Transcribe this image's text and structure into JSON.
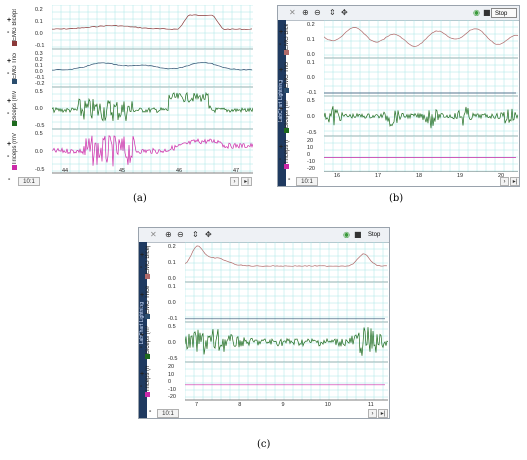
{
  "figure_labels": {
    "a": "(a)",
    "b": "(b)",
    "c": "(c)"
  },
  "panel_a": {
    "channels": [
      {
        "name": "EMG Biceps (mV)",
        "color": "#8b3a3a",
        "yticks": [
          "0.2",
          "0.1",
          "0.0",
          "-0.1"
        ]
      },
      {
        "name": "EMG Triceps (mV)",
        "color": "#2a4d6e",
        "yticks": [
          "0.3",
          "0.2",
          "0.1",
          "0.0",
          "-0.1",
          "-0.2"
        ]
      },
      {
        "name": "Biceps (mV)",
        "color": "#1e6b1e",
        "yticks": [
          "0.5",
          "0.0",
          "-0.5"
        ]
      },
      {
        "name": "Triceps (mV)",
        "color": "#cc2aa8",
        "yticks": [
          "0.5",
          "0.0",
          "-0.5"
        ]
      }
    ],
    "xticks": [
      "44",
      "45",
      "46",
      "47"
    ],
    "zoom": "10:1",
    "plus": "+",
    "minus": "-"
  },
  "panel_b": {
    "toolbar": {
      "close": "✕",
      "stop": "Stop"
    },
    "side_label": "LabChart Lightning",
    "channels": [
      {
        "name": "EMG Biceps (mV)",
        "color": "#b06a6a",
        "yticks": [
          "0.2",
          "0.1",
          "0.0"
        ]
      },
      {
        "name": "EMG Triceps (mV)",
        "color": "#2a4d6e",
        "yticks": [
          "0.1",
          "0.0",
          "-0.1"
        ]
      },
      {
        "name": "Biceps (mV)",
        "color": "#1e6b1e",
        "yticks": [
          "0.5",
          "0.0",
          "-0.5"
        ]
      },
      {
        "name": "Triceps (mV)",
        "color": "#cc2aa8",
        "yticks": [
          "20",
          "10",
          "0",
          "-10",
          "-20"
        ]
      }
    ],
    "xticks": [
      "16",
      "17",
      "18",
      "19",
      "20"
    ],
    "zoom": "10:1"
  },
  "panel_c": {
    "toolbar": {
      "close": "✕",
      "stop": "Stop"
    },
    "side_label": "LabChart Lightning",
    "channels": [
      {
        "name": "EMG Biceps (mV)",
        "color": "#b06a6a",
        "yticks": [
          "0.2",
          "0.1",
          "0.0"
        ]
      },
      {
        "name": "EMG Triceps (mV)",
        "color": "#2a4d6e",
        "yticks": [
          "0.1",
          "0.0",
          "-0.1"
        ]
      },
      {
        "name": "Biceps (mV)",
        "color": "#1e6b1e",
        "yticks": [
          "0.5",
          "0.0",
          "-0.5"
        ]
      },
      {
        "name": "Triceps (mV)",
        "color": "#cc2aa8",
        "yticks": [
          "20",
          "10",
          "0",
          "-10",
          "-20"
        ]
      }
    ],
    "xticks": [
      "7",
      "8",
      "9",
      "10",
      "11"
    ],
    "zoom": "10:1"
  }
}
